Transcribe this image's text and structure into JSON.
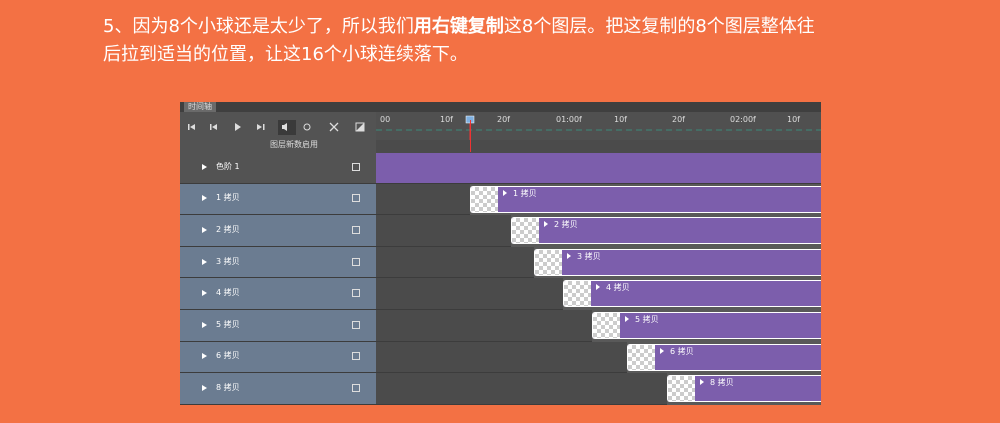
{
  "instruction": {
    "line1_before": "5、因为8个小球还是太少了，所以我们",
    "line1_bold": "用右键复制",
    "line1_after": "这8个图层。把这复制的8个图层整体往",
    "line2": "后拉到适当的位置，让这16个小球连续落下。"
  },
  "timeline": {
    "tab": "时间轴",
    "ruler": [
      "00",
      "10f",
      "20f",
      "01:00f",
      "10f",
      "20f",
      "02:00f",
      "10f"
    ],
    "header_row": "图层新数启用",
    "layers": [
      "色阶 1",
      "1 拷贝",
      "2 拷贝",
      "3 拷贝",
      "4 拷贝",
      "5 拷贝",
      "6 拷贝",
      "8 拷贝"
    ],
    "clips": [
      "1 拷贝",
      "2 拷贝",
      "3 拷贝",
      "4 拷贝",
      "5 拷贝",
      "6 拷贝",
      "8 拷贝"
    ]
  }
}
